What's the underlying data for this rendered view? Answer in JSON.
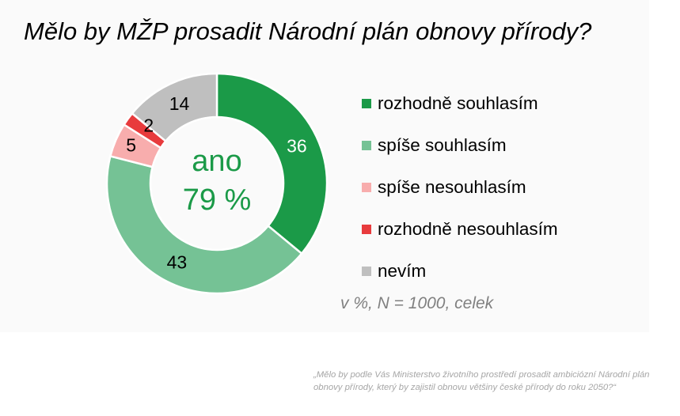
{
  "title": "Mělo by MŽP prosadit Národní plán obnovy přírody?",
  "chart_data": {
    "type": "donut",
    "title": "Mělo by MŽP prosadit Národní plán obnovy přírody?",
    "center_label": {
      "line1": "ano",
      "line2": "79 %"
    },
    "unit_note": "v %, N = 1000, celek",
    "legend_position": "right",
    "series": [
      {
        "name": "rozhodně souhlasím",
        "value": 36,
        "color": "#1b9a48"
      },
      {
        "name": "spíše souhlasím",
        "value": 43,
        "color": "#75c295"
      },
      {
        "name": "spíše nesouhlasím",
        "value": 5,
        "color": "#f8adad"
      },
      {
        "name": "rozhodně nesouhlasím",
        "value": 2,
        "color": "#e83b3d"
      },
      {
        "name": "nevím",
        "value": 14,
        "color": "#bfbfbf"
      }
    ]
  },
  "center_color": "#1b9a48",
  "question_text": "„Mělo by podle Vás Ministerstvo životního prostředí prosadit ambiciózní Národní plán obnovy přírody, který by zajistil obnovu většiny české přírody do roku 2050?“"
}
